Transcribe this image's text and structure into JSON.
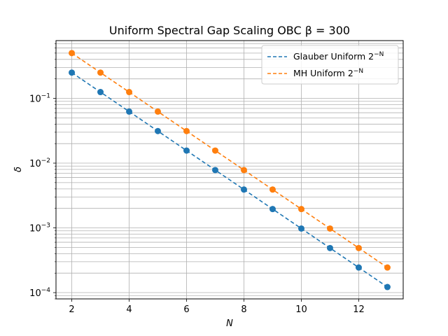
{
  "chart_data": {
    "type": "scatter",
    "title": "Uniform Spectral Gap Scaling OBC β = 300",
    "xlabel": "N",
    "ylabel": "δ",
    "x_ticks": [
      "2",
      "4",
      "6",
      "8",
      "10",
      "12"
    ],
    "y_ticks": [
      {
        "base": "10",
        "exp": "−4",
        "value": 0.0001
      },
      {
        "base": "10",
        "exp": "−3",
        "value": 0.001
      },
      {
        "base": "10",
        "exp": "−2",
        "value": 0.01
      },
      {
        "base": "10",
        "exp": "−1",
        "value": 0.1
      }
    ],
    "xlim": [
      1.45,
      13.55
    ],
    "ylim": [
      8e-05,
      0.78
    ],
    "yscale": "log",
    "grid": true,
    "grid_minor_y": true,
    "legend_position": "top-right",
    "x": [
      2,
      3,
      4,
      5,
      6,
      7,
      8,
      9,
      10,
      11,
      12,
      13
    ],
    "series": [
      {
        "key": "glauber",
        "color": "#1f77b4",
        "values": [
          0.25,
          0.125,
          0.0625,
          0.03125,
          0.015625,
          0.0078125,
          0.00390625,
          0.001953125,
          0.0009765625,
          0.00048828125,
          0.000244140625,
          0.0001220703125
        ],
        "fit_label": "Glauber Uniform 2",
        "fit_exp": "−N",
        "fit_values": [
          0.25,
          0.125,
          0.0625,
          0.03125,
          0.015625,
          0.0078125,
          0.00390625,
          0.001953125,
          0.0009765625,
          0.00048828125,
          0.000244140625,
          0.0001220703125
        ]
      },
      {
        "key": "mh",
        "color": "#ff7f0e",
        "values": [
          0.5,
          0.25,
          0.125,
          0.0625,
          0.03125,
          0.015625,
          0.0078125,
          0.00390625,
          0.001953125,
          0.0009765625,
          0.00048828125,
          0.000244140625
        ],
        "fit_label": "MH Uniform 2",
        "fit_exp": "−N",
        "fit_values": [
          0.5,
          0.25,
          0.125,
          0.0625,
          0.03125,
          0.015625,
          0.0078125,
          0.00390625,
          0.001953125,
          0.0009765625,
          0.00048828125,
          0.000244140625
        ]
      }
    ]
  }
}
